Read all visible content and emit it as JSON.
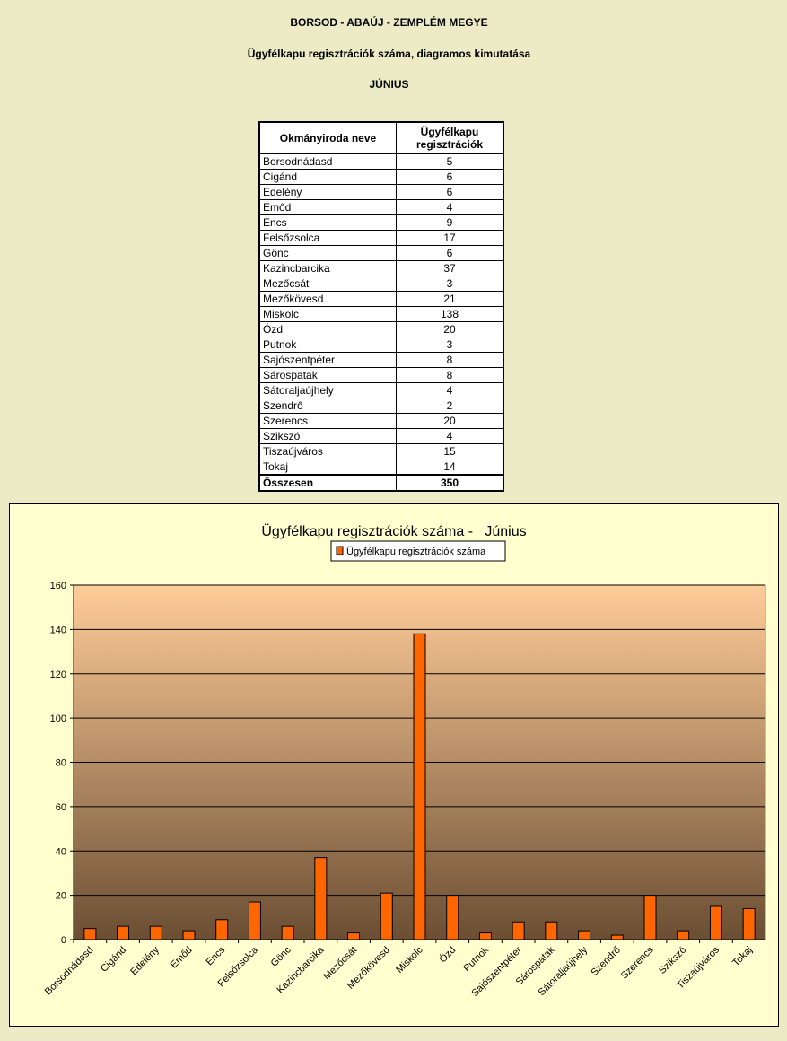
{
  "header": {
    "county": "BORSOD - ABAÚJ - ZEMPLÉM MEGYE",
    "subtitle": "Ügyfélkapu regisztrációk száma, diagramos kimutatása",
    "month": "JÚNIUS"
  },
  "table": {
    "col_name": "Okmányiroda neve",
    "col_value": "Ügyfélkapu regisztrációk",
    "rows": [
      {
        "name": "Borsodnádasd",
        "value": "5"
      },
      {
        "name": "Cigánd",
        "value": "6"
      },
      {
        "name": "Edelény",
        "value": "6"
      },
      {
        "name": "Emőd",
        "value": "4"
      },
      {
        "name": "Encs",
        "value": "9"
      },
      {
        "name": "Felsőzsolca",
        "value": "17"
      },
      {
        "name": "Gönc",
        "value": "6"
      },
      {
        "name": "Kazincbarcika",
        "value": "37"
      },
      {
        "name": "Mezőcsát",
        "value": "3"
      },
      {
        "name": "Mezőkövesd",
        "value": "21"
      },
      {
        "name": "Miskolc",
        "value": "138"
      },
      {
        "name": "Ózd",
        "value": "20"
      },
      {
        "name": "Putnok",
        "value": "3"
      },
      {
        "name": "Sajószentpéter",
        "value": "8"
      },
      {
        "name": "Sárospatak",
        "value": "8"
      },
      {
        "name": "Sátoraljaújhely",
        "value": "4"
      },
      {
        "name": "Szendrő",
        "value": "2"
      },
      {
        "name": "Szerencs",
        "value": "20"
      },
      {
        "name": "Szikszó",
        "value": "4"
      },
      {
        "name": "Tiszaújváros",
        "value": "15"
      },
      {
        "name": "Tokaj",
        "value": "14"
      }
    ],
    "total_label": "Összesen",
    "total_value": "350"
  },
  "chart_data": {
    "type": "bar",
    "title": "Ügyfélkapu regisztrációk száma -   Június",
    "legend_position": "top",
    "grid": true,
    "ylim": [
      0,
      160
    ],
    "yticks": [
      0,
      20,
      40,
      60,
      80,
      100,
      120,
      140,
      160
    ],
    "categories": [
      "Borsodnádasd",
      "Cigánd",
      "Edelény",
      "Emőd",
      "Encs",
      "Felsőzsolca",
      "Gönc",
      "Kazincbarcika",
      "Mezőcsát",
      "Mezőkövesd",
      "Miskolc",
      "Ózd",
      "Putnok",
      "Sajószentpéter",
      "Sárospatak",
      "Sátoraljaújhely",
      "Szendrő",
      "Szerencs",
      "Szikszó",
      "Tiszaújváros",
      "Tokaj"
    ],
    "series": [
      {
        "name": "Ügyfélkapu regisztrációk száma",
        "values": [
          5,
          6,
          6,
          4,
          9,
          17,
          6,
          37,
          3,
          21,
          138,
          20,
          3,
          8,
          8,
          4,
          2,
          20,
          4,
          15,
          14
        ]
      }
    ],
    "colors": {
      "bar": "#ff6600",
      "plot_top": "#ffcc99",
      "plot_bottom": "#6b4e33",
      "chart_bg": "#ffffcf"
    }
  }
}
